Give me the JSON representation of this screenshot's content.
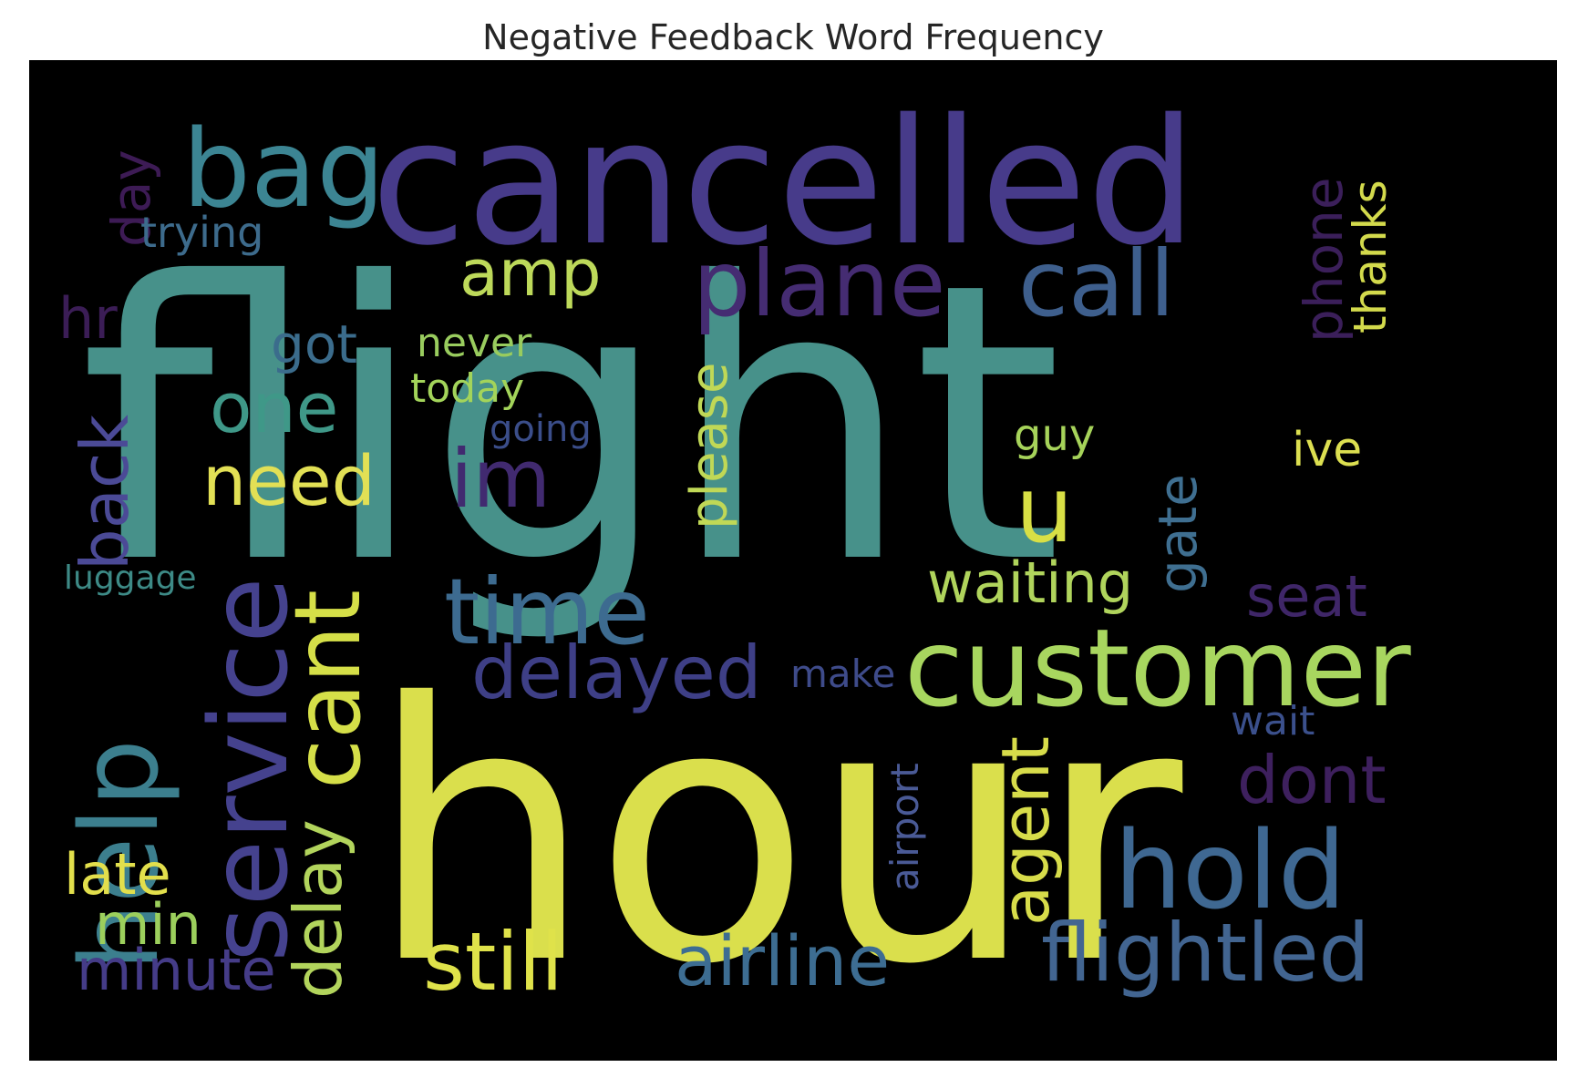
{
  "chart_data": {
    "type": "wordcloud",
    "title": "Negative Feedback Word Frequency",
    "background": "#000000",
    "colormap": "viridis",
    "words": [
      {
        "text": "flight",
        "color": "#47918a"
      },
      {
        "text": "hour",
        "color": "#dadf4c"
      },
      {
        "text": "cancelled",
        "color": "#473b8a"
      },
      {
        "text": "customer",
        "color": "#a8d65f"
      },
      {
        "text": "bag",
        "color": "#3c8593"
      },
      {
        "text": "service",
        "color": "#45428e"
      },
      {
        "text": "help",
        "color": "#3c7f8e"
      },
      {
        "text": "hold",
        "color": "#3f6892"
      },
      {
        "text": "time",
        "color": "#3d6b90"
      },
      {
        "text": "plane",
        "color": "#452c72"
      },
      {
        "text": "call",
        "color": "#3e5f8d"
      },
      {
        "text": "cant",
        "color": "#d5df48"
      },
      {
        "text": "still",
        "color": "#dfe24a"
      },
      {
        "text": "flightled",
        "color": "#426591"
      },
      {
        "text": "delayed",
        "color": "#3e3f86"
      },
      {
        "text": "airline",
        "color": "#3d6d92"
      },
      {
        "text": "im",
        "color": "#412a70"
      },
      {
        "text": "u",
        "color": "#d8df45"
      },
      {
        "text": "need",
        "color": "#e2e055"
      },
      {
        "text": "one",
        "color": "#3f9888"
      },
      {
        "text": "amp",
        "color": "#bdd95a"
      },
      {
        "text": "back",
        "color": "#4b4a96"
      },
      {
        "text": "delay",
        "color": "#b2d45c"
      },
      {
        "text": "agent",
        "color": "#d7dc4a"
      },
      {
        "text": "waiting",
        "color": "#b0d45c"
      },
      {
        "text": "seat",
        "color": "#3f2668"
      },
      {
        "text": "dont",
        "color": "#3e205e"
      },
      {
        "text": "late",
        "color": "#e2df4c"
      },
      {
        "text": "min",
        "color": "#9ccf5c"
      },
      {
        "text": "minute",
        "color": "#453c88"
      },
      {
        "text": "please",
        "color": "#c0d856"
      },
      {
        "text": "gate",
        "color": "#3f6f91"
      },
      {
        "text": "day",
        "color": "#3d1b55"
      },
      {
        "text": "trying",
        "color": "#3d6b8c"
      },
      {
        "text": "hr",
        "color": "#3b1d56"
      },
      {
        "text": "got",
        "color": "#3b6c8c"
      },
      {
        "text": "never",
        "color": "#99cc5e"
      },
      {
        "text": "today",
        "color": "#a3d45a"
      },
      {
        "text": "going",
        "color": "#3b4e8a"
      },
      {
        "text": "guy",
        "color": "#a6d35a"
      },
      {
        "text": "ive",
        "color": "#dcdf50"
      },
      {
        "text": "phone",
        "color": "#3b1f5a"
      },
      {
        "text": "thanks",
        "color": "#d3da4c"
      },
      {
        "text": "luggage",
        "color": "#3d8a86"
      },
      {
        "text": "make",
        "color": "#3e4b8a"
      },
      {
        "text": "wait",
        "color": "#3b508c"
      },
      {
        "text": "airport",
        "color": "#4a5a96"
      }
    ]
  }
}
